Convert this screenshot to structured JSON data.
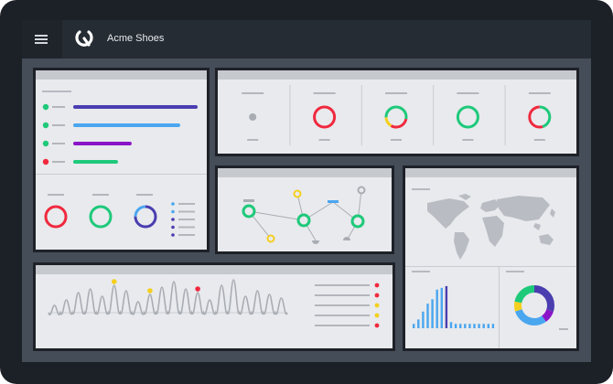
{
  "app": {
    "title": "Acme Shoes",
    "menu_icon": "hamburger-menu-icon",
    "logo_icon": "acme-logo-icon"
  },
  "colors": {
    "frame": "#1c2128",
    "topbar": "#262c34",
    "canvas": "#454d59",
    "panel": "#e8eaed",
    "panel_header": "#c6c9ce",
    "green": "#1ec97a",
    "red": "#f0293e",
    "blue": "#4aa6ef",
    "indigo": "#4a3db0",
    "purple": "#8a14c8",
    "yellow": "#f4cf1e",
    "gray_line": "#b3b6bb"
  },
  "bar_widget": {
    "bars": [
      {
        "value": 1.0,
        "color": "#4a3db0",
        "dot": "#1ec97a"
      },
      {
        "value": 0.86,
        "color": "#4aa6ef",
        "dot": "#1ec97a"
      },
      {
        "value": 0.47,
        "color": "#8a14c8",
        "dot": "#1ec97a"
      },
      {
        "value": 0.36,
        "color": "#1ec97a",
        "dot": "#f0293e"
      }
    ],
    "rings": [
      "red",
      "green",
      "blue-indigo"
    ],
    "legend_dots": [
      "#4aa6ef",
      "#4aa6ef",
      "#4a3db0",
      "#4a3db0",
      "#4a3db0"
    ]
  },
  "status_rings": [
    "gray-dot",
    "red",
    "multi",
    "green",
    "red-green"
  ],
  "trend_highlights": [
    "yellow",
    "yellow",
    "red"
  ],
  "trend_legend_dots": [
    "#f0293e",
    "#f0293e",
    "#f4cf1e",
    "#f4cf1e",
    "#f0293e"
  ],
  "histogram": {
    "values": [
      0.1,
      0.2,
      0.38,
      0.56,
      0.66,
      0.88,
      0.92,
      0.96,
      0.14,
      0.1,
      0.1,
      0.1,
      0.1,
      0.1,
      0.1,
      0.1,
      0.1,
      0.1
    ]
  },
  "donut": {
    "segments": [
      {
        "share": 0.3,
        "color": "#4a3db0"
      },
      {
        "share": 0.1,
        "color": "#8a14c8"
      },
      {
        "share": 0.3,
        "color": "#4aa6ef"
      },
      {
        "share": 0.08,
        "color": "#f4cf1e"
      },
      {
        "share": 0.22,
        "color": "#1ec97a"
      }
    ]
  }
}
